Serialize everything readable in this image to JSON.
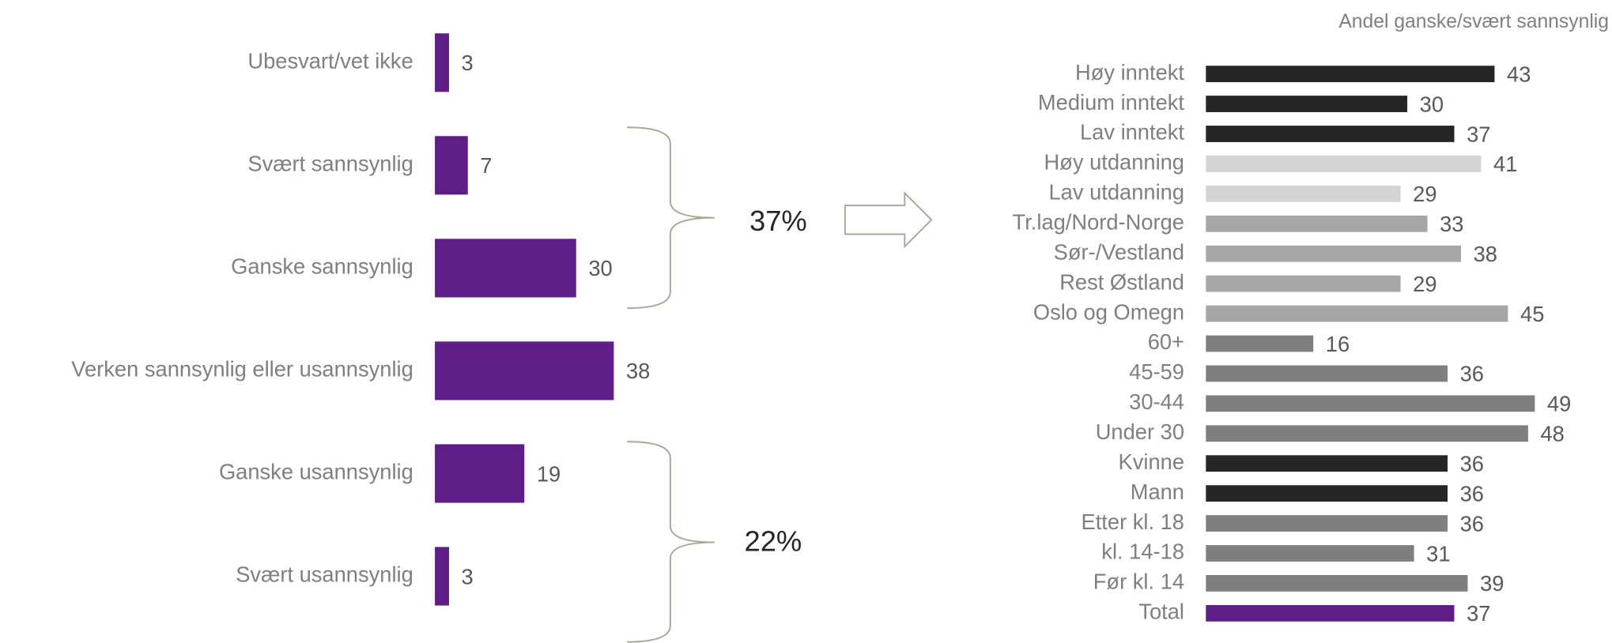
{
  "chart_data": [
    {
      "type": "bar",
      "orientation": "horizontal",
      "categories": [
        "Ubesvart/vet ikke",
        "Svært sannsynlig",
        "Ganske sannsynlig",
        "Verken sannsynlig eller usannsynlig",
        "Ganske usannsynlig",
        "Svært usannsynlig"
      ],
      "values": [
        3,
        7,
        30,
        38,
        19,
        3
      ],
      "color": "#5f1e87",
      "annotations": [
        "37%",
        "22%"
      ]
    },
    {
      "type": "bar",
      "orientation": "horizontal",
      "title": "Andel ganske/svært sannsynlig",
      "categories": [
        "Høy inntekt",
        "Medium inntekt",
        "Lav inntekt",
        "Høy utdanning",
        "Lav utdanning",
        "Tr.lag/Nord-Norge",
        "Sør-/Vestland",
        "Rest Østland",
        "Oslo og Omegn",
        "60+",
        "45-59",
        "30-44",
        "Under 30",
        "Kvinne",
        "Mann",
        "Etter kl. 18",
        "kl. 14-18",
        "Før kl. 14",
        "Total"
      ],
      "values": [
        43,
        30,
        37,
        41,
        29,
        33,
        38,
        29,
        45,
        16,
        36,
        49,
        48,
        36,
        36,
        36,
        31,
        39,
        37
      ],
      "colors": [
        "#262626",
        "#262626",
        "#262626",
        "#d4d4d4",
        "#d4d4d4",
        "#a6a6a6",
        "#a6a6a6",
        "#a6a6a6",
        "#a6a6a6",
        "#7f7f7f",
        "#7f7f7f",
        "#7f7f7f",
        "#7f7f7f",
        "#262626",
        "#262626",
        "#7f7f7f",
        "#7f7f7f",
        "#7f7f7f",
        "#5f1e87"
      ]
    }
  ]
}
